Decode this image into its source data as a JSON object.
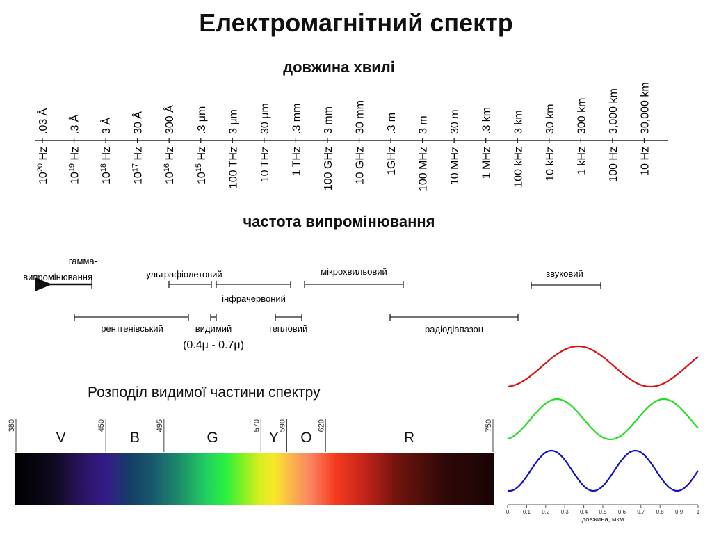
{
  "title": "Електромагнітний спектр",
  "wavelength_title": "довжина хвилі",
  "frequency_title": "частота випромінювання",
  "scale": {
    "wavelengths": [
      ".03 Å",
      ".3 Å",
      "3 Å",
      "30 Å",
      "300 Å",
      ".3 μm",
      "3 μm",
      "30 μm",
      ".3 mm",
      "3 mm",
      "30 mm",
      ".3 m",
      "3 m",
      "30 m",
      ".3 km",
      "3 km",
      "30 km",
      "300 km",
      "3,000 km",
      "30,000 km"
    ],
    "frequencies": [
      {
        "base": "10",
        "exp": "20",
        "unit": " Hz"
      },
      {
        "base": "10",
        "exp": "19",
        "unit": " Hz"
      },
      {
        "base": "10",
        "exp": "18",
        "unit": " Hz"
      },
      {
        "base": "10",
        "exp": "17",
        "unit": " Hz"
      },
      {
        "base": "10",
        "exp": "16",
        "unit": " Hz"
      },
      {
        "base": "10",
        "exp": "15",
        "unit": " Hz"
      },
      {
        "base": "100 THz",
        "exp": "",
        "unit": ""
      },
      {
        "base": "10 THz",
        "exp": "",
        "unit": ""
      },
      {
        "base": "1 THz",
        "exp": "",
        "unit": ""
      },
      {
        "base": "100 GHz",
        "exp": "",
        "unit": ""
      },
      {
        "base": "10 GHz",
        "exp": "",
        "unit": ""
      },
      {
        "base": "1GHz",
        "exp": "",
        "unit": ""
      },
      {
        "base": "100 MHz",
        "exp": "",
        "unit": ""
      },
      {
        "base": "10 MHz",
        "exp": "",
        "unit": ""
      },
      {
        "base": "1 MHz",
        "exp": "",
        "unit": ""
      },
      {
        "base": "100 kHz",
        "exp": "",
        "unit": ""
      },
      {
        "base": "10 kHz",
        "exp": "",
        "unit": ""
      },
      {
        "base": "1 kHz",
        "exp": "",
        "unit": ""
      },
      {
        "base": "100 Hz",
        "exp": "",
        "unit": ""
      },
      {
        "base": "10 Hz",
        "exp": "",
        "unit": ""
      }
    ]
  },
  "bands": {
    "gamma_line1": "гамма-",
    "gamma_line2": "випромінювання",
    "uv": "ультрафіолетовий",
    "ir": "інфрачервоний",
    "microwave": "мікрохвильовий",
    "sound": "звуковий",
    "xray": "рентгенівський",
    "visible": "видимий",
    "visible_range": "(0.4μ - 0.7μ)",
    "thermal": "тепловий",
    "radio": "радіодіапазон"
  },
  "visible_title": "Розподіл видимої частини спектру",
  "visible_spectrum": {
    "ticks": [
      "380",
      "450",
      "495",
      "570",
      "590",
      "620",
      "750"
    ],
    "letters": [
      "V",
      "B",
      "G",
      "Y",
      "O",
      "R"
    ]
  },
  "wave_plot": {
    "xlabel": "довжина, мкм",
    "ticks": [
      "0",
      "0.1",
      "0.2",
      "0.3",
      "0.4",
      "0.5",
      "0.6",
      "0.7",
      "0.8",
      "0.9",
      "1"
    ],
    "colors": {
      "red": "#dd1111",
      "green": "#22dd22",
      "blue": "#1111bb"
    }
  }
}
